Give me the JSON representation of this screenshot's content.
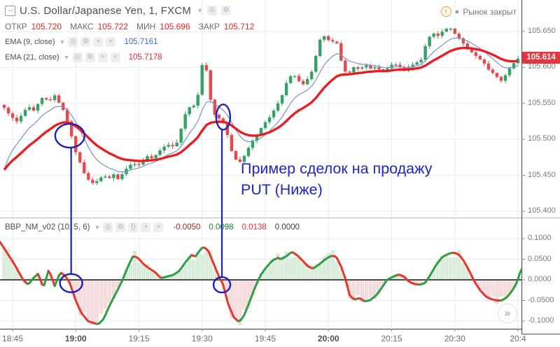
{
  "header": {
    "symbol_title": "U.S. Dollar/Japanese Yen, 1, FXCM",
    "market_status": "Рынок закрыт",
    "ohlc": [
      {
        "label": "ОТКР",
        "value": "105.720"
      },
      {
        "label": "МАКС",
        "value": "105.722"
      },
      {
        "label": "МИН",
        "value": "105.696"
      },
      {
        "label": "ЗАКР",
        "value": "105.712"
      }
    ],
    "ohlc_value_color": "#e8242c",
    "overlays": [
      {
        "label": "EMA (9, close)",
        "value": "105.7161",
        "value_color": "#3c6cd6"
      },
      {
        "label": "EMA (21, close)",
        "value": "105.7178",
        "value_color": "#e8242c"
      }
    ]
  },
  "sub_indicator": {
    "label": "BBP_NM_v02 (10, 5, 6)",
    "values": [
      {
        "text": "-0.0050",
        "color": "#9a2b2b"
      },
      {
        "text": "0.0098",
        "color": "#1d7a2e"
      },
      {
        "text": "0.0138",
        "color": "#ef2b36"
      },
      {
        "text": "0.0000",
        "color": "#3a3d46"
      }
    ]
  },
  "annotation": {
    "line1": "Пример сделок на продажу",
    "line2": "PUT (Ниже)",
    "color": "#1f24c7",
    "markers": [
      {
        "t": 13.6,
        "price": 105.505,
        "ind_t": 13.9,
        "ind_val": -0.008
      },
      {
        "t": 50.0,
        "price": 105.531,
        "ind_t": 49.7,
        "ind_val": -0.012
      }
    ]
  },
  "axes": {
    "price_ticks": [
      "105.650",
      "105.600",
      "105.550",
      "105.500",
      "105.450",
      "105.400"
    ],
    "last_price": "105.614",
    "ind_ticks": [
      "0.1000",
      "0.0500",
      "0.0000",
      "-0.0500",
      "-0.1000"
    ],
    "time_ticks": [
      {
        "t": 0,
        "label": "18:45"
      },
      {
        "t": 15,
        "label": "19:00",
        "bold": true
      },
      {
        "t": 30,
        "label": "19:15"
      },
      {
        "t": 45,
        "label": "19:30"
      },
      {
        "t": 60,
        "label": "19:45"
      },
      {
        "t": 75,
        "label": "20:00",
        "bold": true
      },
      {
        "t": 90,
        "label": "20:15"
      },
      {
        "t": 105,
        "label": "20:30"
      },
      {
        "t": 120,
        "label": "20:4"
      }
    ]
  },
  "collapse_button": "»",
  "colors": {
    "up": "#35a264",
    "down": "#e5484d",
    "ema9": "#7893c7",
    "ema21": "#e81e25",
    "ind_up": "#2f9e44",
    "ind_down": "#e5372e",
    "hist_up": "#dcedde",
    "hist_up_edge": "#c2dfc8",
    "hist_down": "#f7dede",
    "hist_down_edge": "#ecc9c9",
    "grid": "#e7edf3",
    "axis_line": "#50535e",
    "zero_line": "#4c4c4c",
    "badge_bg": "#e8343f",
    "marker_blue": "#1b21b8"
  },
  "chart_data": [
    {
      "type": "candlestick",
      "title": "U.S. Dollar/Japanese Yen",
      "interval_minutes": 1,
      "exchange": "FXCM",
      "x_unit": "minutes_since_18:45",
      "xlim": [
        -3,
        121
      ],
      "ylim": [
        105.385,
        105.668
      ],
      "grid": true,
      "ema_periods": [
        9,
        21
      ],
      "ema_seeds": [
        105.437,
        105.449
      ],
      "close_path": [
        [
          -2.5,
          105.548
        ],
        [
          -1.3,
          105.538
        ],
        [
          0,
          105.53
        ],
        [
          1.2,
          105.524
        ],
        [
          2.3,
          105.536
        ],
        [
          3.7,
          105.546
        ],
        [
          5,
          105.54
        ],
        [
          6.1,
          105.55
        ],
        [
          7.3,
          105.56
        ],
        [
          8.6,
          105.552
        ],
        [
          10,
          105.561
        ],
        [
          11.1,
          105.55
        ],
        [
          12.3,
          105.538
        ],
        [
          13.6,
          105.514
        ],
        [
          14.8,
          105.485
        ],
        [
          16,
          105.468
        ],
        [
          17,
          105.453
        ],
        [
          18.1,
          105.443
        ],
        [
          19.3,
          105.438
        ],
        [
          20.4,
          105.444
        ],
        [
          21.6,
          105.45
        ],
        [
          22.8,
          105.445
        ],
        [
          23.9,
          105.452
        ],
        [
          25.1,
          105.444
        ],
        [
          26.3,
          105.454
        ],
        [
          27.4,
          105.462
        ],
        [
          28.6,
          105.467
        ],
        [
          29.7,
          105.463
        ],
        [
          30.9,
          105.471
        ],
        [
          32.1,
          105.477
        ],
        [
          33.2,
          105.473
        ],
        [
          34.4,
          105.481
        ],
        [
          35.6,
          105.488
        ],
        [
          36.7,
          105.493
        ],
        [
          37.9,
          105.49
        ],
        [
          39.1,
          105.496
        ],
        [
          40.2,
          105.519
        ],
        [
          41.4,
          105.543
        ],
        [
          42.5,
          105.546
        ],
        [
          43.7,
          105.548
        ],
        [
          44.9,
          105.604
        ],
        [
          46,
          105.596
        ],
        [
          47.2,
          105.547
        ],
        [
          48.4,
          105.528
        ],
        [
          49.5,
          105.53
        ],
        [
          50.7,
          105.513
        ],
        [
          51.9,
          105.485
        ],
        [
          53,
          105.472
        ],
        [
          54.2,
          105.468
        ],
        [
          55.3,
          105.48
        ],
        [
          56.5,
          105.494
        ],
        [
          57.7,
          105.504
        ],
        [
          58.8,
          105.514
        ],
        [
          60,
          105.524
        ],
        [
          61.2,
          105.532
        ],
        [
          62.5,
          105.545
        ],
        [
          63.8,
          105.558
        ],
        [
          65.1,
          105.58
        ],
        [
          66.5,
          105.592
        ],
        [
          67.8,
          105.582
        ],
        [
          69.1,
          105.576
        ],
        [
          70.5,
          105.588
        ],
        [
          71.5,
          105.6
        ],
        [
          72.5,
          105.632
        ],
        [
          73.5,
          105.645
        ],
        [
          74.5,
          105.642
        ],
        [
          75.5,
          105.634
        ],
        [
          76.5,
          105.638
        ],
        [
          77.4,
          105.63
        ],
        [
          78.4,
          105.596
        ],
        [
          79.8,
          105.592
        ],
        [
          81.1,
          105.601
        ],
        [
          82.4,
          105.597
        ],
        [
          83.8,
          105.604
        ],
        [
          85.1,
          105.598
        ],
        [
          86.4,
          105.601
        ],
        [
          87.7,
          105.593
        ],
        [
          89.1,
          105.599
        ],
        [
          90.4,
          105.606
        ],
        [
          91.7,
          105.601
        ],
        [
          93.1,
          105.597
        ],
        [
          94.4,
          105.602
        ],
        [
          95.7,
          105.606
        ],
        [
          97.1,
          105.611
        ],
        [
          98.4,
          105.638
        ],
        [
          99.7,
          105.648
        ],
        [
          101,
          105.644
        ],
        [
          102.4,
          105.652
        ],
        [
          103.7,
          105.656
        ],
        [
          105,
          105.647
        ],
        [
          106.4,
          105.638
        ],
        [
          107.7,
          105.628
        ],
        [
          109,
          105.621
        ],
        [
          110.4,
          105.614
        ],
        [
          111.7,
          105.608
        ],
        [
          113,
          105.597
        ],
        [
          114.3,
          105.591
        ],
        [
          115.3,
          105.585
        ],
        [
          116.3,
          105.58
        ],
        [
          117.3,
          105.593
        ],
        [
          118.3,
          105.601
        ],
        [
          119.3,
          105.608
        ],
        [
          120.3,
          105.614
        ],
        [
          121,
          105.617
        ]
      ]
    },
    {
      "type": "line+histogram",
      "title": "BBP_NM_v02 (10, 5, 6)",
      "x_unit": "minutes_since_18:45",
      "ylim": [
        -0.115,
        0.115
      ],
      "zero_line": 0,
      "points": [
        [
          -3,
          0.092
        ],
        [
          0.3,
          0.04
        ],
        [
          2.5,
          0
        ],
        [
          3.7,
          -0.012
        ],
        [
          5,
          0.005
        ],
        [
          6.1,
          0.015
        ],
        [
          7.3,
          -0.02
        ],
        [
          8.6,
          0.025
        ],
        [
          10,
          -0.015
        ],
        [
          11.3,
          0.018
        ],
        [
          12.5,
          0.01
        ],
        [
          13.6,
          -0.008
        ],
        [
          15,
          -0.05
        ],
        [
          16.3,
          -0.08
        ],
        [
          17.9,
          -0.1
        ],
        [
          20.3,
          -0.108
        ],
        [
          21.6,
          -0.095
        ],
        [
          22.9,
          -0.065
        ],
        [
          24.4,
          -0.035
        ],
        [
          25.9,
          -0.005
        ],
        [
          27.3,
          0.03
        ],
        [
          28.6,
          0.058
        ],
        [
          29.8,
          0.053
        ],
        [
          31.1,
          0.038
        ],
        [
          32.4,
          0.028
        ],
        [
          33.9,
          0.018
        ],
        [
          35.2,
          0.004
        ],
        [
          36.7,
          0.008
        ],
        [
          38.2,
          0.012
        ],
        [
          39.6,
          0.022
        ],
        [
          41.2,
          0.045
        ],
        [
          42.5,
          0.06
        ],
        [
          43.4,
          0.056
        ],
        [
          44.2,
          0.068
        ],
        [
          45.2,
          0.08
        ],
        [
          46.4,
          0.072
        ],
        [
          47.7,
          0.04
        ],
        [
          48.9,
          0.01
        ],
        [
          50,
          -0.012
        ],
        [
          51.2,
          -0.06
        ],
        [
          52.5,
          -0.09
        ],
        [
          53.7,
          -0.102
        ],
        [
          54.8,
          -0.09
        ],
        [
          56.2,
          -0.055
        ],
        [
          57.5,
          -0.02
        ],
        [
          58.8,
          0.01
        ],
        [
          60.2,
          0.03
        ],
        [
          61.8,
          0.048
        ],
        [
          63,
          0.053
        ],
        [
          63.8,
          0.05
        ],
        [
          65.1,
          0.058
        ],
        [
          66.3,
          0.068
        ],
        [
          67.5,
          0.06
        ],
        [
          69,
          0.045
        ],
        [
          70.1,
          0.033
        ],
        [
          71.3,
          0.027
        ],
        [
          72.6,
          0.036
        ],
        [
          74.3,
          0.05
        ],
        [
          75.6,
          0.058
        ],
        [
          76.8,
          0.057
        ],
        [
          78.1,
          0.03
        ],
        [
          79.1,
          0
        ],
        [
          80.1,
          -0.04
        ],
        [
          81.3,
          -0.048
        ],
        [
          82.3,
          -0.044
        ],
        [
          83.6,
          -0.052
        ],
        [
          84.8,
          -0.05
        ],
        [
          86.3,
          -0.038
        ],
        [
          87.6,
          -0.02
        ],
        [
          88.9,
          0
        ],
        [
          90.4,
          0.008
        ],
        [
          91.7,
          0.013
        ],
        [
          92.9,
          0.008
        ],
        [
          94.2,
          -0.005
        ],
        [
          95.4,
          -0.01
        ],
        [
          96.7,
          -0.012
        ],
        [
          97.9,
          -0.008
        ],
        [
          99.2,
          0.012
        ],
        [
          100.5,
          0.035
        ],
        [
          102,
          0.055
        ],
        [
          103.5,
          0.063
        ],
        [
          104.7,
          0.066
        ],
        [
          105.9,
          0.062
        ],
        [
          107.2,
          0.045
        ],
        [
          108.5,
          0.02
        ],
        [
          109.7,
          -0.005
        ],
        [
          111,
          -0.025
        ],
        [
          112.3,
          -0.04
        ],
        [
          113.7,
          -0.047
        ],
        [
          115,
          -0.05
        ],
        [
          116,
          -0.05
        ],
        [
          117.2,
          -0.044
        ],
        [
          118.5,
          -0.028
        ],
        [
          119.7,
          -0.008
        ],
        [
          120.8,
          0.028
        ]
      ]
    }
  ]
}
